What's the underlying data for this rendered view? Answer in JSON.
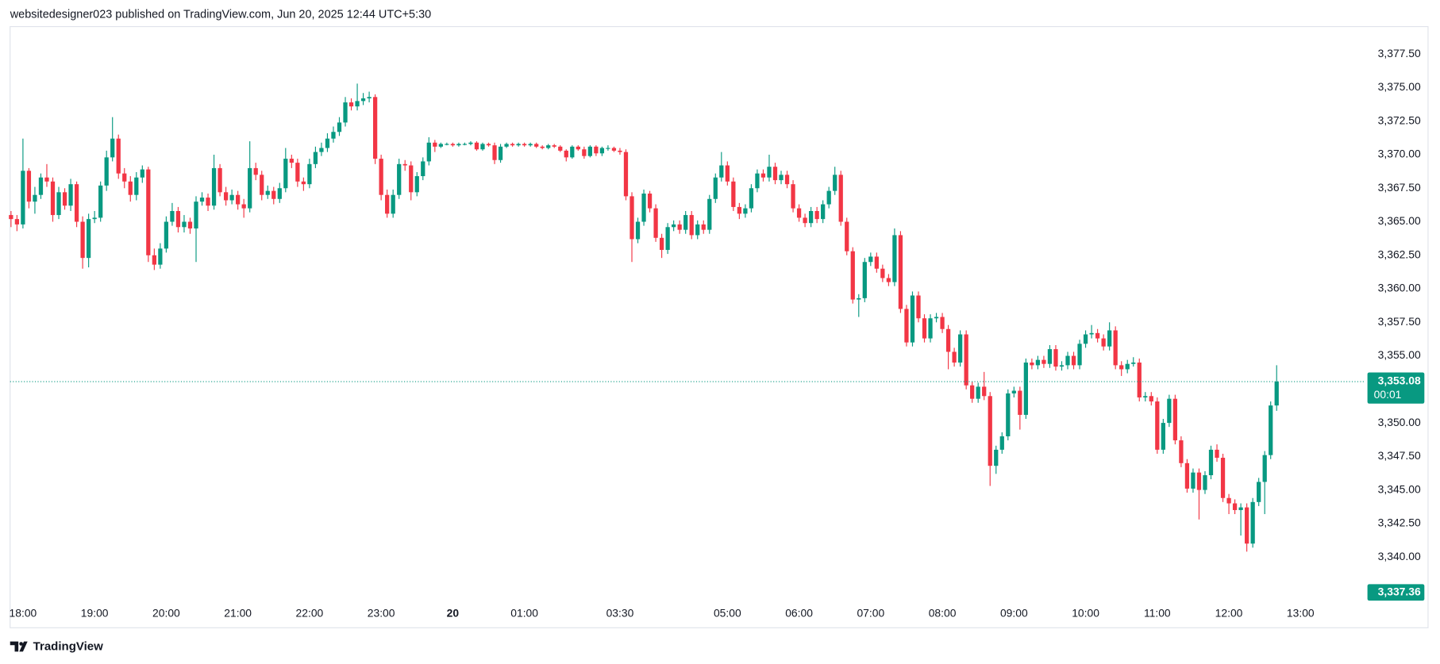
{
  "chart_data": {
    "type": "candlestick",
    "header": "websitedesigner023 published on TradingView.com, Jun 20, 2025 12:44 UTC+5:30",
    "brand": "TradingView",
    "up_color": "#089981",
    "down_color": "#f23645",
    "ylim": [
      3336.71,
      3379.55
    ],
    "xlim": [
      -0.15,
      226.9
    ],
    "yticks": [
      {
        "value": 3340,
        "label": "3,340.00"
      },
      {
        "value": 3342.5,
        "label": "3,342.50"
      },
      {
        "value": 3345,
        "label": "3,345.00"
      },
      {
        "value": 3347.5,
        "label": "3,347.50"
      },
      {
        "value": 3350,
        "label": "3,350.00"
      },
      {
        "value": 3352.5,
        "label": "3,352.50"
      },
      {
        "value": 3355,
        "label": "3,355.00"
      },
      {
        "value": 3357.5,
        "label": "3,357.50"
      },
      {
        "value": 3360,
        "label": "3,360.00"
      },
      {
        "value": 3362.5,
        "label": "3,362.50"
      },
      {
        "value": 3365,
        "label": "3,365.00"
      },
      {
        "value": 3367.5,
        "label": "3,367.50"
      },
      {
        "value": 3370,
        "label": "3,370.00"
      },
      {
        "value": 3372.5,
        "label": "3,372.50"
      },
      {
        "value": 3375,
        "label": "3,375.00"
      },
      {
        "value": 3377.5,
        "label": "3,377.50"
      }
    ],
    "xticks": [
      {
        "value": 2,
        "label": "18:00"
      },
      {
        "value": 14,
        "label": "19:00"
      },
      {
        "value": 26,
        "label": "20:00"
      },
      {
        "value": 38,
        "label": "21:00"
      },
      {
        "value": 50,
        "label": "22:00"
      },
      {
        "value": 62,
        "label": "23:00"
      },
      {
        "value": 74,
        "label": "20",
        "bold": true
      },
      {
        "value": 86,
        "label": "01:00"
      },
      {
        "value": 102,
        "label": "03:30"
      },
      {
        "value": 120,
        "label": "05:00"
      },
      {
        "value": 132,
        "label": "06:00"
      },
      {
        "value": 144,
        "label": "07:00"
      },
      {
        "value": 156,
        "label": "08:00"
      },
      {
        "value": 168,
        "label": "09:00"
      },
      {
        "value": 180,
        "label": "10:00"
      },
      {
        "value": 192,
        "label": "11:00"
      },
      {
        "value": 204,
        "label": "12:00"
      },
      {
        "value": 216,
        "label": "13:00"
      }
    ],
    "last_price": {
      "value": 3353.08,
      "label": "3,353.08"
    },
    "countdown": "00:01",
    "marker_price": {
      "value": 3337.36,
      "label": "3,337.36"
    },
    "candles": [
      [
        3365.5,
        3365.8,
        3364.6,
        3365.2
      ],
      [
        3365.2,
        3365.5,
        3364.3,
        3364.8
      ],
      [
        3364.8,
        3371.2,
        3364.5,
        3368.8
      ],
      [
        3368.8,
        3369.0,
        3366.0,
        3366.5
      ],
      [
        3366.5,
        3367.6,
        3365.6,
        3367.0
      ],
      [
        3367.0,
        3368.6,
        3366.7,
        3368.3
      ],
      [
        3368.3,
        3369.3,
        3367.6,
        3368.0
      ],
      [
        3368.0,
        3368.3,
        3365.0,
        3365.5
      ],
      [
        3365.5,
        3367.6,
        3365.2,
        3367.2
      ],
      [
        3367.2,
        3367.5,
        3365.9,
        3366.2
      ],
      [
        3366.2,
        3368.2,
        3365.8,
        3367.8
      ],
      [
        3367.8,
        3368.0,
        3364.6,
        3365.0
      ],
      [
        3365.0,
        3365.4,
        3361.5,
        3362.3
      ],
      [
        3362.3,
        3365.6,
        3361.6,
        3365.2
      ],
      [
        3365.2,
        3365.8,
        3364.9,
        3365.3
      ],
      [
        3365.3,
        3368.0,
        3365.0,
        3367.7
      ],
      [
        3367.7,
        3370.3,
        3367.3,
        3369.8
      ],
      [
        3369.8,
        3372.8,
        3369.5,
        3371.2
      ],
      [
        3371.2,
        3371.5,
        3368.2,
        3368.6
      ],
      [
        3368.6,
        3369.0,
        3367.5,
        3368.0
      ],
      [
        3368.0,
        3368.4,
        3366.5,
        3367.0
      ],
      [
        3367.0,
        3368.7,
        3366.6,
        3368.3
      ],
      [
        3368.3,
        3369.2,
        3367.9,
        3368.9
      ],
      [
        3368.9,
        3369.1,
        3362.0,
        3362.5
      ],
      [
        3362.5,
        3363.0,
        3361.4,
        3361.8
      ],
      [
        3361.8,
        3363.4,
        3361.5,
        3363.0
      ],
      [
        3363.0,
        3365.4,
        3362.7,
        3365.0
      ],
      [
        3365.0,
        3366.4,
        3364.7,
        3365.8
      ],
      [
        3365.8,
        3366.1,
        3364.2,
        3364.6
      ],
      [
        3364.6,
        3365.5,
        3364.2,
        3365.0
      ],
      [
        3365.0,
        3365.3,
        3364.1,
        3364.5
      ],
      [
        3364.5,
        3366.9,
        3362.0,
        3366.5
      ],
      [
        3366.5,
        3367.2,
        3366.2,
        3366.8
      ],
      [
        3366.8,
        3367.1,
        3365.8,
        3366.2
      ],
      [
        3366.2,
        3370.0,
        3365.9,
        3369.0
      ],
      [
        3369.0,
        3369.3,
        3366.9,
        3367.2
      ],
      [
        3367.2,
        3367.6,
        3366.2,
        3366.6
      ],
      [
        3366.6,
        3367.4,
        3366.3,
        3367.0
      ],
      [
        3367.0,
        3367.3,
        3365.9,
        3366.3
      ],
      [
        3366.3,
        3366.7,
        3365.3,
        3366.0
      ],
      [
        3366.0,
        3371.0,
        3365.7,
        3369.0
      ],
      [
        3369.0,
        3369.4,
        3368.1,
        3368.5
      ],
      [
        3368.5,
        3368.8,
        3366.6,
        3367.0
      ],
      [
        3367.0,
        3367.7,
        3366.7,
        3367.3
      ],
      [
        3367.3,
        3367.6,
        3366.3,
        3366.7
      ],
      [
        3366.7,
        3367.9,
        3366.4,
        3367.5
      ],
      [
        3367.5,
        3370.5,
        3367.2,
        3369.7
      ],
      [
        3369.7,
        3370.0,
        3369.0,
        3369.4
      ],
      [
        3369.4,
        3369.7,
        3367.6,
        3368.0
      ],
      [
        3368.0,
        3368.3,
        3367.3,
        3367.8
      ],
      [
        3367.8,
        3369.7,
        3367.5,
        3369.3
      ],
      [
        3369.3,
        3370.6,
        3369.0,
        3370.2
      ],
      [
        3370.2,
        3370.9,
        3369.9,
        3370.5
      ],
      [
        3370.5,
        3371.6,
        3370.2,
        3371.2
      ],
      [
        3371.2,
        3372.1,
        3370.9,
        3371.7
      ],
      [
        3371.7,
        3372.8,
        3371.4,
        3372.4
      ],
      [
        3372.4,
        3374.3,
        3372.1,
        3373.9
      ],
      [
        3373.9,
        3374.2,
        3373.3,
        3373.6
      ],
      [
        3373.6,
        3375.3,
        3373.3,
        3374.0
      ],
      [
        3374.0,
        3374.6,
        3373.7,
        3374.2
      ],
      [
        3374.2,
        3374.7,
        3373.9,
        3374.3
      ],
      [
        3374.3,
        3374.5,
        3369.3,
        3369.7
      ],
      [
        3369.7,
        3370.0,
        3366.6,
        3367.0
      ],
      [
        3367.0,
        3367.4,
        3365.3,
        3365.6
      ],
      [
        3365.6,
        3367.4,
        3365.3,
        3367.0
      ],
      [
        3367.0,
        3369.7,
        3366.7,
        3369.3
      ],
      [
        3369.3,
        3369.6,
        3368.8,
        3369.2
      ],
      [
        3369.2,
        3369.5,
        3366.6,
        3367.2
      ],
      [
        3367.2,
        3368.7,
        3366.9,
        3368.4
      ],
      [
        3368.4,
        3369.8,
        3368.1,
        3369.5
      ],
      [
        3369.5,
        3371.3,
        3369.2,
        3370.9
      ],
      [
        3370.9,
        3371.1,
        3370.2,
        3370.6
      ],
      [
        3370.6,
        3370.9,
        3370.5,
        3370.8
      ],
      [
        3370.8,
        3370.9,
        3370.7,
        3370.8
      ],
      [
        3370.8,
        3370.9,
        3370.6,
        3370.7
      ],
      [
        3370.7,
        3370.9,
        3370.6,
        3370.8
      ],
      [
        3370.8,
        3370.9,
        3370.7,
        3370.8
      ],
      [
        3370.8,
        3371.0,
        3370.7,
        3370.9
      ],
      [
        3370.9,
        3371.0,
        3370.3,
        3370.4
      ],
      [
        3370.4,
        3370.9,
        3370.3,
        3370.8
      ],
      [
        3370.8,
        3370.9,
        3370.6,
        3370.7
      ],
      [
        3370.7,
        3370.9,
        3369.3,
        3369.6
      ],
      [
        3369.6,
        3370.8,
        3369.4,
        3370.6
      ],
      [
        3370.6,
        3370.9,
        3370.5,
        3370.8
      ],
      [
        3370.8,
        3370.9,
        3370.6,
        3370.7
      ],
      [
        3370.7,
        3370.9,
        3370.6,
        3370.8
      ],
      [
        3370.8,
        3370.9,
        3370.6,
        3370.7
      ],
      [
        3370.7,
        3370.9,
        3370.6,
        3370.8
      ],
      [
        3370.8,
        3370.9,
        3370.5,
        3370.6
      ],
      [
        3370.6,
        3370.7,
        3370.4,
        3370.5
      ],
      [
        3370.5,
        3370.8,
        3370.4,
        3370.7
      ],
      [
        3370.7,
        3370.8,
        3370.5,
        3370.6
      ],
      [
        3370.6,
        3370.7,
        3370.2,
        3370.3
      ],
      [
        3370.3,
        3370.4,
        3369.5,
        3369.8
      ],
      [
        3369.8,
        3370.7,
        3369.7,
        3370.6
      ],
      [
        3370.6,
        3370.7,
        3370.3,
        3370.4
      ],
      [
        3370.4,
        3370.6,
        3369.7,
        3369.9
      ],
      [
        3369.9,
        3370.7,
        3369.8,
        3370.6
      ],
      [
        3370.6,
        3370.7,
        3369.9,
        3370.1
      ],
      [
        3370.1,
        3370.6,
        3369.9,
        3370.5
      ],
      [
        3370.5,
        3370.7,
        3370.3,
        3370.5
      ],
      [
        3370.5,
        3370.6,
        3370.2,
        3370.3
      ],
      [
        3370.3,
        3370.5,
        3370.0,
        3370.2
      ],
      [
        3370.2,
        3370.4,
        3366.6,
        3366.9
      ],
      [
        3366.9,
        3367.2,
        3362.0,
        3363.7
      ],
      [
        3363.7,
        3365.3,
        3363.4,
        3365.0
      ],
      [
        3365.0,
        3367.4,
        3364.7,
        3367.1
      ],
      [
        3367.1,
        3367.3,
        3365.7,
        3366.0
      ],
      [
        3366.0,
        3366.3,
        3363.5,
        3363.8
      ],
      [
        3363.8,
        3364.1,
        3362.3,
        3362.9
      ],
      [
        3362.9,
        3364.9,
        3362.6,
        3364.6
      ],
      [
        3364.6,
        3365.1,
        3364.3,
        3364.8
      ],
      [
        3364.8,
        3365.1,
        3364.1,
        3364.4
      ],
      [
        3364.4,
        3365.8,
        3364.1,
        3365.5
      ],
      [
        3365.5,
        3365.8,
        3363.7,
        3364.0
      ],
      [
        3364.0,
        3365.1,
        3363.7,
        3364.8
      ],
      [
        3364.8,
        3365.1,
        3364.1,
        3364.4
      ],
      [
        3364.4,
        3367.0,
        3364.1,
        3366.7
      ],
      [
        3366.7,
        3368.6,
        3366.4,
        3368.3
      ],
      [
        3368.3,
        3370.2,
        3368.0,
        3369.2
      ],
      [
        3369.2,
        3369.5,
        3367.7,
        3368.0
      ],
      [
        3368.0,
        3368.3,
        3365.8,
        3366.1
      ],
      [
        3366.1,
        3366.4,
        3365.2,
        3365.6
      ],
      [
        3365.6,
        3366.3,
        3365.3,
        3366.0
      ],
      [
        3366.0,
        3367.8,
        3365.7,
        3367.5
      ],
      [
        3367.5,
        3368.9,
        3367.2,
        3368.6
      ],
      [
        3368.6,
        3368.9,
        3368.0,
        3368.3
      ],
      [
        3368.3,
        3370.0,
        3368.0,
        3369.1
      ],
      [
        3369.1,
        3369.4,
        3367.8,
        3368.1
      ],
      [
        3368.1,
        3368.8,
        3367.8,
        3368.5
      ],
      [
        3368.5,
        3368.8,
        3367.5,
        3367.8
      ],
      [
        3367.8,
        3368.1,
        3365.7,
        3366.0
      ],
      [
        3366.0,
        3366.3,
        3365.0,
        3365.3
      ],
      [
        3365.3,
        3365.6,
        3364.6,
        3364.9
      ],
      [
        3364.9,
        3366.1,
        3364.6,
        3365.8
      ],
      [
        3365.8,
        3366.1,
        3364.9,
        3365.2
      ],
      [
        3365.2,
        3366.6,
        3364.9,
        3366.3
      ],
      [
        3366.3,
        3367.6,
        3366.0,
        3367.3
      ],
      [
        3367.3,
        3369.1,
        3367.0,
        3368.5
      ],
      [
        3368.5,
        3368.8,
        3364.7,
        3365.0
      ],
      [
        3365.0,
        3365.3,
        3362.5,
        3362.8
      ],
      [
        3362.8,
        3363.1,
        3358.9,
        3359.2
      ],
      [
        3359.2,
        3359.6,
        3357.9,
        3359.3
      ],
      [
        3359.3,
        3362.3,
        3359.0,
        3362.0
      ],
      [
        3362.0,
        3362.7,
        3361.7,
        3362.4
      ],
      [
        3362.4,
        3362.7,
        3361.2,
        3361.5
      ],
      [
        3361.5,
        3361.8,
        3360.5,
        3360.8
      ],
      [
        3360.8,
        3361.1,
        3360.2,
        3360.5
      ],
      [
        3360.5,
        3364.5,
        3360.2,
        3364.0
      ],
      [
        3364.0,
        3364.3,
        3358.2,
        3358.5
      ],
      [
        3358.5,
        3358.8,
        3355.7,
        3356.0
      ],
      [
        3356.0,
        3359.8,
        3355.7,
        3359.5
      ],
      [
        3359.5,
        3359.8,
        3357.5,
        3357.8
      ],
      [
        3357.8,
        3358.1,
        3356.0,
        3356.3
      ],
      [
        3356.3,
        3358.1,
        3356.0,
        3357.8
      ],
      [
        3357.8,
        3358.2,
        3357.5,
        3357.9
      ],
      [
        3357.9,
        3358.2,
        3356.7,
        3357.0
      ],
      [
        3357.0,
        3357.3,
        3354.0,
        3355.3
      ],
      [
        3355.3,
        3355.6,
        3354.2,
        3354.5
      ],
      [
        3354.5,
        3356.9,
        3354.2,
        3356.6
      ],
      [
        3356.6,
        3356.9,
        3352.5,
        3352.8
      ],
      [
        3352.8,
        3353.1,
        3351.5,
        3351.8
      ],
      [
        3351.8,
        3353.0,
        3351.5,
        3352.7
      ],
      [
        3352.7,
        3353.8,
        3351.7,
        3352.0
      ],
      [
        3352.0,
        3352.3,
        3345.3,
        3346.8
      ],
      [
        3346.8,
        3348.3,
        3346.2,
        3348.0
      ],
      [
        3348.0,
        3349.3,
        3347.7,
        3349.0
      ],
      [
        3349.0,
        3352.5,
        3348.7,
        3352.2
      ],
      [
        3352.2,
        3352.7,
        3351.9,
        3352.4
      ],
      [
        3352.4,
        3352.7,
        3349.5,
        3350.6
      ],
      [
        3350.6,
        3354.8,
        3350.3,
        3354.5
      ],
      [
        3354.5,
        3354.8,
        3354.0,
        3354.3
      ],
      [
        3354.3,
        3355.0,
        3354.0,
        3354.7
      ],
      [
        3354.7,
        3355.0,
        3354.1,
        3354.4
      ],
      [
        3354.4,
        3355.8,
        3354.1,
        3355.5
      ],
      [
        3355.5,
        3355.8,
        3353.9,
        3354.2
      ],
      [
        3354.2,
        3354.6,
        3353.9,
        3354.3
      ],
      [
        3354.3,
        3355.3,
        3354.0,
        3355.0
      ],
      [
        3355.0,
        3355.3,
        3354.0,
        3354.3
      ],
      [
        3354.3,
        3356.2,
        3354.0,
        3355.9
      ],
      [
        3355.9,
        3356.9,
        3355.6,
        3356.6
      ],
      [
        3356.6,
        3357.3,
        3356.3,
        3356.7
      ],
      [
        3356.7,
        3357.0,
        3356.0,
        3356.3
      ],
      [
        3356.3,
        3356.6,
        3355.4,
        3355.7
      ],
      [
        3355.7,
        3357.5,
        3355.4,
        3356.9
      ],
      [
        3356.9,
        3357.2,
        3354.0,
        3354.3
      ],
      [
        3354.3,
        3354.6,
        3353.5,
        3354.0
      ],
      [
        3354.0,
        3354.7,
        3353.7,
        3354.4
      ],
      [
        3354.4,
        3354.9,
        3354.2,
        3354.5
      ],
      [
        3354.5,
        3354.8,
        3351.6,
        3351.9
      ],
      [
        3351.9,
        3352.3,
        3351.6,
        3352.0
      ],
      [
        3352.0,
        3352.3,
        3351.3,
        3351.6
      ],
      [
        3351.6,
        3351.9,
        3347.7,
        3348.0
      ],
      [
        3348.0,
        3350.3,
        3347.7,
        3350.0
      ],
      [
        3350.0,
        3352.1,
        3349.7,
        3351.8
      ],
      [
        3351.8,
        3352.1,
        3348.4,
        3348.7
      ],
      [
        3348.7,
        3349.0,
        3346.7,
        3347.0
      ],
      [
        3347.0,
        3347.3,
        3344.8,
        3345.1
      ],
      [
        3345.1,
        3346.6,
        3344.8,
        3346.3
      ],
      [
        3346.3,
        3346.6,
        3342.8,
        3345.0
      ],
      [
        3345.0,
        3346.4,
        3344.7,
        3346.1
      ],
      [
        3346.1,
        3348.3,
        3345.8,
        3348.0
      ],
      [
        3348.0,
        3348.4,
        3347.1,
        3347.4
      ],
      [
        3347.4,
        3347.7,
        3344.1,
        3344.4
      ],
      [
        3344.4,
        3344.7,
        3343.2,
        3344.0
      ],
      [
        3344.0,
        3344.3,
        3343.2,
        3343.5
      ],
      [
        3343.5,
        3344.0,
        3341.6,
        3343.7
      ],
      [
        3343.7,
        3344.0,
        3340.4,
        3341.0
      ],
      [
        3341.0,
        3344.4,
        3340.7,
        3344.1
      ],
      [
        3344.1,
        3345.9,
        3343.8,
        3345.6
      ],
      [
        3345.6,
        3347.9,
        3343.2,
        3347.6
      ],
      [
        3347.6,
        3351.6,
        3347.3,
        3351.3
      ],
      [
        3351.3,
        3354.3,
        3350.9,
        3353.08
      ]
    ]
  }
}
